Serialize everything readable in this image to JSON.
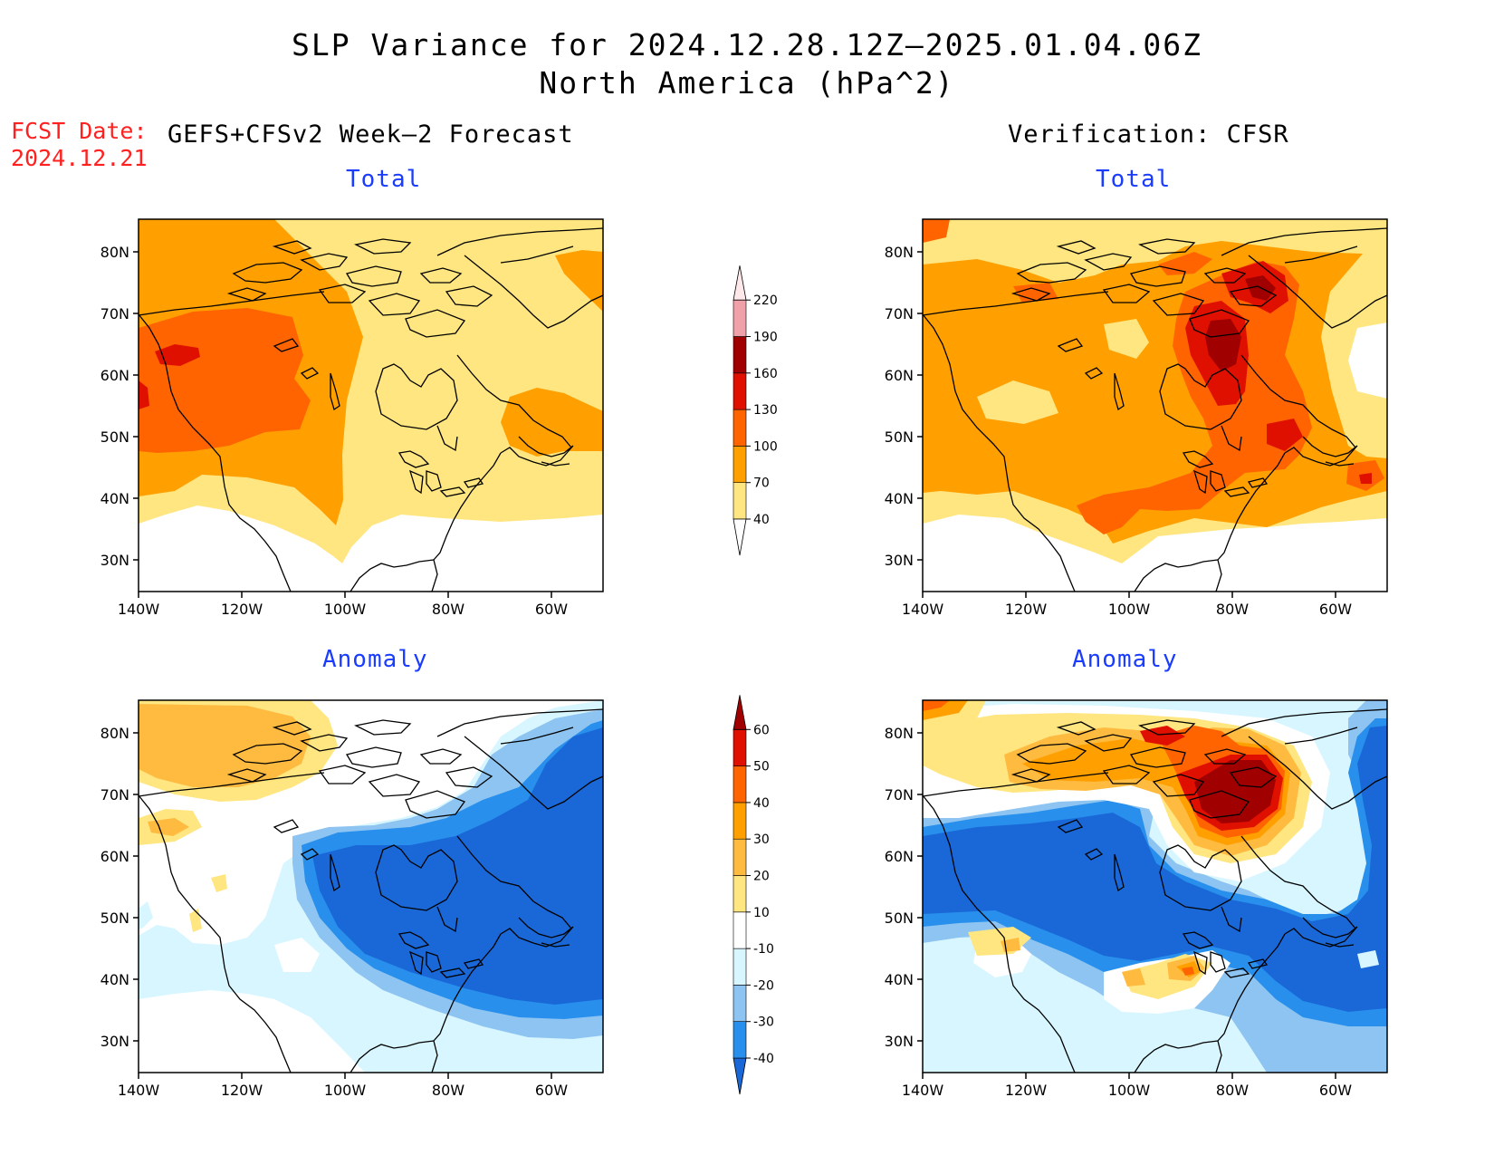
{
  "title": {
    "line1": "SLP Variance for 2024.12.28.12Z–2025.01.04.06Z",
    "line2": "North America (hPa^2)"
  },
  "fcst_date": {
    "label": "FCST Date:",
    "value": "2024.12.21"
  },
  "forecast_header": "GEFS+CFSv2 Week–2 Forecast",
  "verification_header": "Verification: CFSR",
  "panels": {
    "total_forecast_title": "Total",
    "total_verification_title": "Total",
    "anomaly_forecast_title": "Anomaly",
    "anomaly_verification_title": "Anomaly"
  },
  "map_axes": {
    "lat_labels": [
      "80N",
      "70N",
      "60N",
      "50N",
      "40N",
      "30N"
    ],
    "lon_labels": [
      "140W",
      "120W",
      "100W",
      "80W",
      "60W"
    ]
  },
  "total_colorbar": {
    "levels": [
      "40",
      "70",
      "100",
      "130",
      "160",
      "190",
      "220"
    ],
    "colors": [
      "#ffe680",
      "#ffa000",
      "#ff6400",
      "#e01000",
      "#a00000",
      "#f0a0a8",
      "#ffe8ea"
    ]
  },
  "anomaly_colorbar": {
    "levels": [
      "-40",
      "-30",
      "-20",
      "-10",
      "10",
      "20",
      "30",
      "40",
      "50",
      "60"
    ],
    "colors": [
      "#1a68d8",
      "#2890ec",
      "#8ec4f2",
      "#d8f6ff",
      "#ffffff",
      "#ffe680",
      "#ffbb40",
      "#ffa000",
      "#ff6400",
      "#e01000",
      "#a00000"
    ]
  },
  "palette": {
    "t_light": "#ffe680",
    "t_orange": "#ffa000",
    "t_dorange": "#ff6400",
    "t_red": "#e01000",
    "t_dred": "#a00000",
    "a_pale_blue": "#d8f6ff",
    "a_light_blue": "#8ec4f2",
    "a_mid_blue": "#2890ec",
    "a_blue": "#1a68d8",
    "a_yellow": "#ffe680",
    "a_lorange": "#ffbb40",
    "a_orange": "#ffa000",
    "a_dorange": "#ff6400",
    "a_red": "#e01000",
    "a_dred": "#a00000"
  }
}
